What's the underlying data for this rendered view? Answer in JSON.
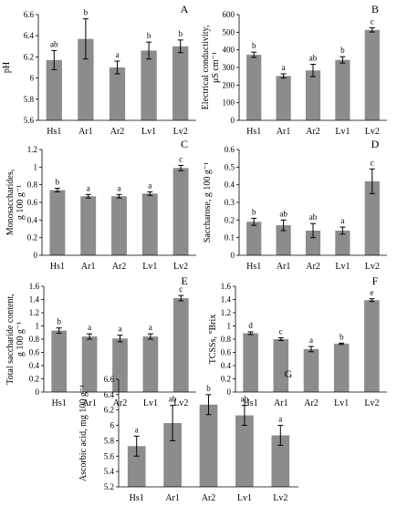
{
  "colors": {
    "bar": "#8c8c8c",
    "axis": "#000000",
    "error": "#000000"
  },
  "chart_data": [
    {
      "panel": "A",
      "type": "bar",
      "categories": [
        "Hs1",
        "Ar1",
        "Ar2",
        "Lv1",
        "Lv2"
      ],
      "values": [
        6.17,
        6.37,
        6.1,
        6.26,
        6.3
      ],
      "errors": [
        0.09,
        0.19,
        0.06,
        0.08,
        0.06
      ],
      "letters": [
        "ab",
        "b",
        "a",
        "b",
        "b"
      ],
      "ylabel": [
        "pH"
      ],
      "ylim": [
        5.6,
        6.6
      ],
      "yticks": [
        5.6,
        5.8,
        6.0,
        6.2,
        6.4,
        6.6
      ],
      "yticklabels": [
        "5.6",
        "5.8",
        "6",
        "6.2",
        "6.4",
        "6.6"
      ],
      "grid": false
    },
    {
      "panel": "B",
      "type": "bar",
      "categories": [
        "Hs1",
        "Ar1",
        "Ar2",
        "Lv1",
        "Lv2"
      ],
      "values": [
        372,
        252,
        283,
        343,
        513
      ],
      "errors": [
        15,
        12,
        35,
        18,
        12
      ],
      "letters": [
        "b",
        "a",
        "ab",
        "b",
        "c"
      ],
      "ylabel": [
        "Electrical conductivity,",
        "μS cm⁻¹"
      ],
      "ylim": [
        0,
        600
      ],
      "yticks": [
        0,
        100,
        200,
        300,
        400,
        500,
        600
      ],
      "yticklabels": [
        "0",
        "100",
        "200",
        "300",
        "400",
        "500",
        "600"
      ],
      "grid": false
    },
    {
      "panel": "C",
      "type": "bar",
      "categories": [
        "Hs1",
        "Ar1",
        "Ar2",
        "Lv1",
        "Lv2"
      ],
      "values": [
        0.74,
        0.67,
        0.67,
        0.7,
        0.99
      ],
      "errors": [
        0.02,
        0.02,
        0.02,
        0.02,
        0.03
      ],
      "letters": [
        "b",
        "a",
        "a",
        "a",
        "c"
      ],
      "ylabel": [
        "Monosaccharides,",
        "g 100 g⁻¹"
      ],
      "ylim": [
        0,
        1.2
      ],
      "yticks": [
        0,
        0.2,
        0.4,
        0.6,
        0.8,
        1.0,
        1.2
      ],
      "yticklabels": [
        "0",
        "0.2",
        "0.4",
        "0.6",
        "0.8",
        "1",
        "1.2"
      ],
      "grid": false
    },
    {
      "panel": "D",
      "type": "bar",
      "categories": [
        "Hs1",
        "Ar1",
        "Ar2",
        "Lv1",
        "Lv2"
      ],
      "values": [
        0.19,
        0.17,
        0.14,
        0.14,
        0.42
      ],
      "errors": [
        0.02,
        0.03,
        0.04,
        0.02,
        0.07
      ],
      "letters": [
        "b",
        "ab",
        "ab",
        "a",
        "c"
      ],
      "ylabel": [
        "Saccharose, g 100 g⁻¹"
      ],
      "ylim": [
        0,
        0.6
      ],
      "yticks": [
        0,
        0.1,
        0.2,
        0.3,
        0.4,
        0.5,
        0.6
      ],
      "yticklabels": [
        "0",
        "0.1",
        "0.2",
        "0.3",
        "0.4",
        "0.5",
        "0.6"
      ],
      "grid": false
    },
    {
      "panel": "E",
      "type": "bar",
      "categories": [
        "Hs1",
        "Ar1",
        "Ar2",
        "Lv1",
        "Lv2"
      ],
      "values": [
        0.93,
        0.84,
        0.81,
        0.84,
        1.42
      ],
      "errors": [
        0.04,
        0.04,
        0.05,
        0.04,
        0.04
      ],
      "letters": [
        "b",
        "a",
        "a",
        "a",
        "c"
      ],
      "ylabel": [
        "Total saccharide content,",
        "g 100 g⁻¹"
      ],
      "ylim": [
        0,
        1.6
      ],
      "yticks": [
        0,
        0.2,
        0.4,
        0.6,
        0.8,
        1.0,
        1.2,
        1.4,
        1.6
      ],
      "yticklabels": [
        "0",
        "0.2",
        "0.4",
        "0.6",
        "0.8",
        "1",
        "1.2",
        "1.4",
        "1.6"
      ],
      "grid": false
    },
    {
      "panel": "F",
      "type": "bar",
      "categories": [
        "Hs1",
        "Ar1",
        "Ar2",
        "Lv1",
        "Lv2"
      ],
      "values": [
        0.89,
        0.8,
        0.65,
        0.73,
        1.39
      ],
      "errors": [
        0.02,
        0.02,
        0.04,
        0.01,
        0.02
      ],
      "letters": [
        "d",
        "c",
        "a",
        "b",
        "e"
      ],
      "ylabel": [
        "TCSSs, °Brix"
      ],
      "ylim": [
        0,
        1.6
      ],
      "yticks": [
        0,
        0.2,
        0.4,
        0.6,
        0.8,
        1.0,
        1.2,
        1.4,
        1.6
      ],
      "yticklabels": [
        "0",
        "0.2",
        "0.4",
        "0.6",
        "0.8",
        "1",
        "1.2",
        "1.4",
        "1.6"
      ],
      "grid": false
    },
    {
      "panel": "G",
      "type": "bar",
      "categories": [
        "Hs1",
        "Ar1",
        "Ar2",
        "Lv1",
        "Lv2"
      ],
      "values": [
        5.73,
        6.03,
        6.27,
        6.13,
        5.87
      ],
      "errors": [
        0.13,
        0.23,
        0.13,
        0.13,
        0.13
      ],
      "letters": [
        "a",
        "ab",
        "b",
        "ab",
        "a"
      ],
      "ylabel": [
        "Ascorbic acid, mg 100 g⁻¹"
      ],
      "ylim": [
        5.2,
        6.6
      ],
      "yticks": [
        5.2,
        5.4,
        5.6,
        5.8,
        6.0,
        6.2,
        6.4,
        6.6
      ],
      "yticklabels": [
        "5.2",
        "5.4",
        "5.6",
        "5.8",
        "6",
        "6.2",
        "6.4",
        "6.6"
      ],
      "grid": false
    }
  ]
}
